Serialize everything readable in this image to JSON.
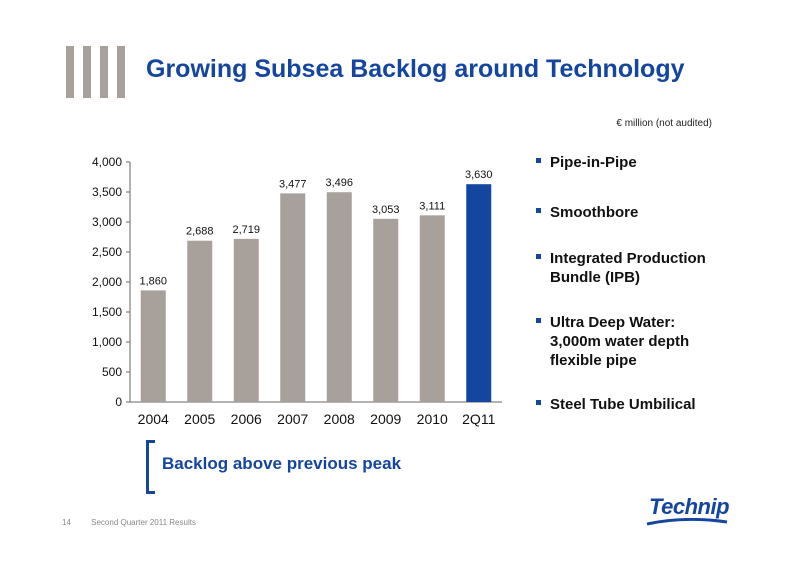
{
  "slide": {
    "title": "Growing Subsea Backlog around Technology",
    "units_note": "€ million (not audited)",
    "callout": "Backlog above previous peak",
    "footer_page": "14",
    "footer_text": "Second Quarter 2011 Results",
    "logo_text": "Technip"
  },
  "bullets": [
    "Pipe-in-Pipe",
    "Smoothbore",
    "Integrated Production Bundle (IPB)",
    "Ultra Deep Water: 3,000m water depth flexible pipe",
    "Steel Tube Umbilical"
  ],
  "colors": {
    "accent": "#1446a0",
    "bar_default": "#a8a09b",
    "bar_highlight": "#1446a0",
    "deco": "#a8a09b"
  },
  "chart_data": {
    "type": "bar",
    "categories": [
      "2004",
      "2005",
      "2006",
      "2007",
      "2008",
      "2009",
      "2010",
      "2Q11"
    ],
    "values": [
      1860,
      2688,
      2719,
      3477,
      3496,
      3053,
      3111,
      3630
    ],
    "value_labels": [
      "1,860",
      "2,688",
      "2,719",
      "3,477",
      "3,496",
      "3,053",
      "3,111",
      "3,630"
    ],
    "highlight_index": 7,
    "ylim": [
      0,
      4000
    ],
    "yticks": [
      0,
      500,
      1000,
      1500,
      2000,
      2500,
      3000,
      3500,
      4000
    ],
    "ytick_labels": [
      "0",
      "500",
      "1,000",
      "1,500",
      "2,000",
      "2,500",
      "3,000",
      "3,500",
      "4,000"
    ],
    "title": "",
    "xlabel": "",
    "ylabel": "",
    "grid": false,
    "legend": "none"
  }
}
